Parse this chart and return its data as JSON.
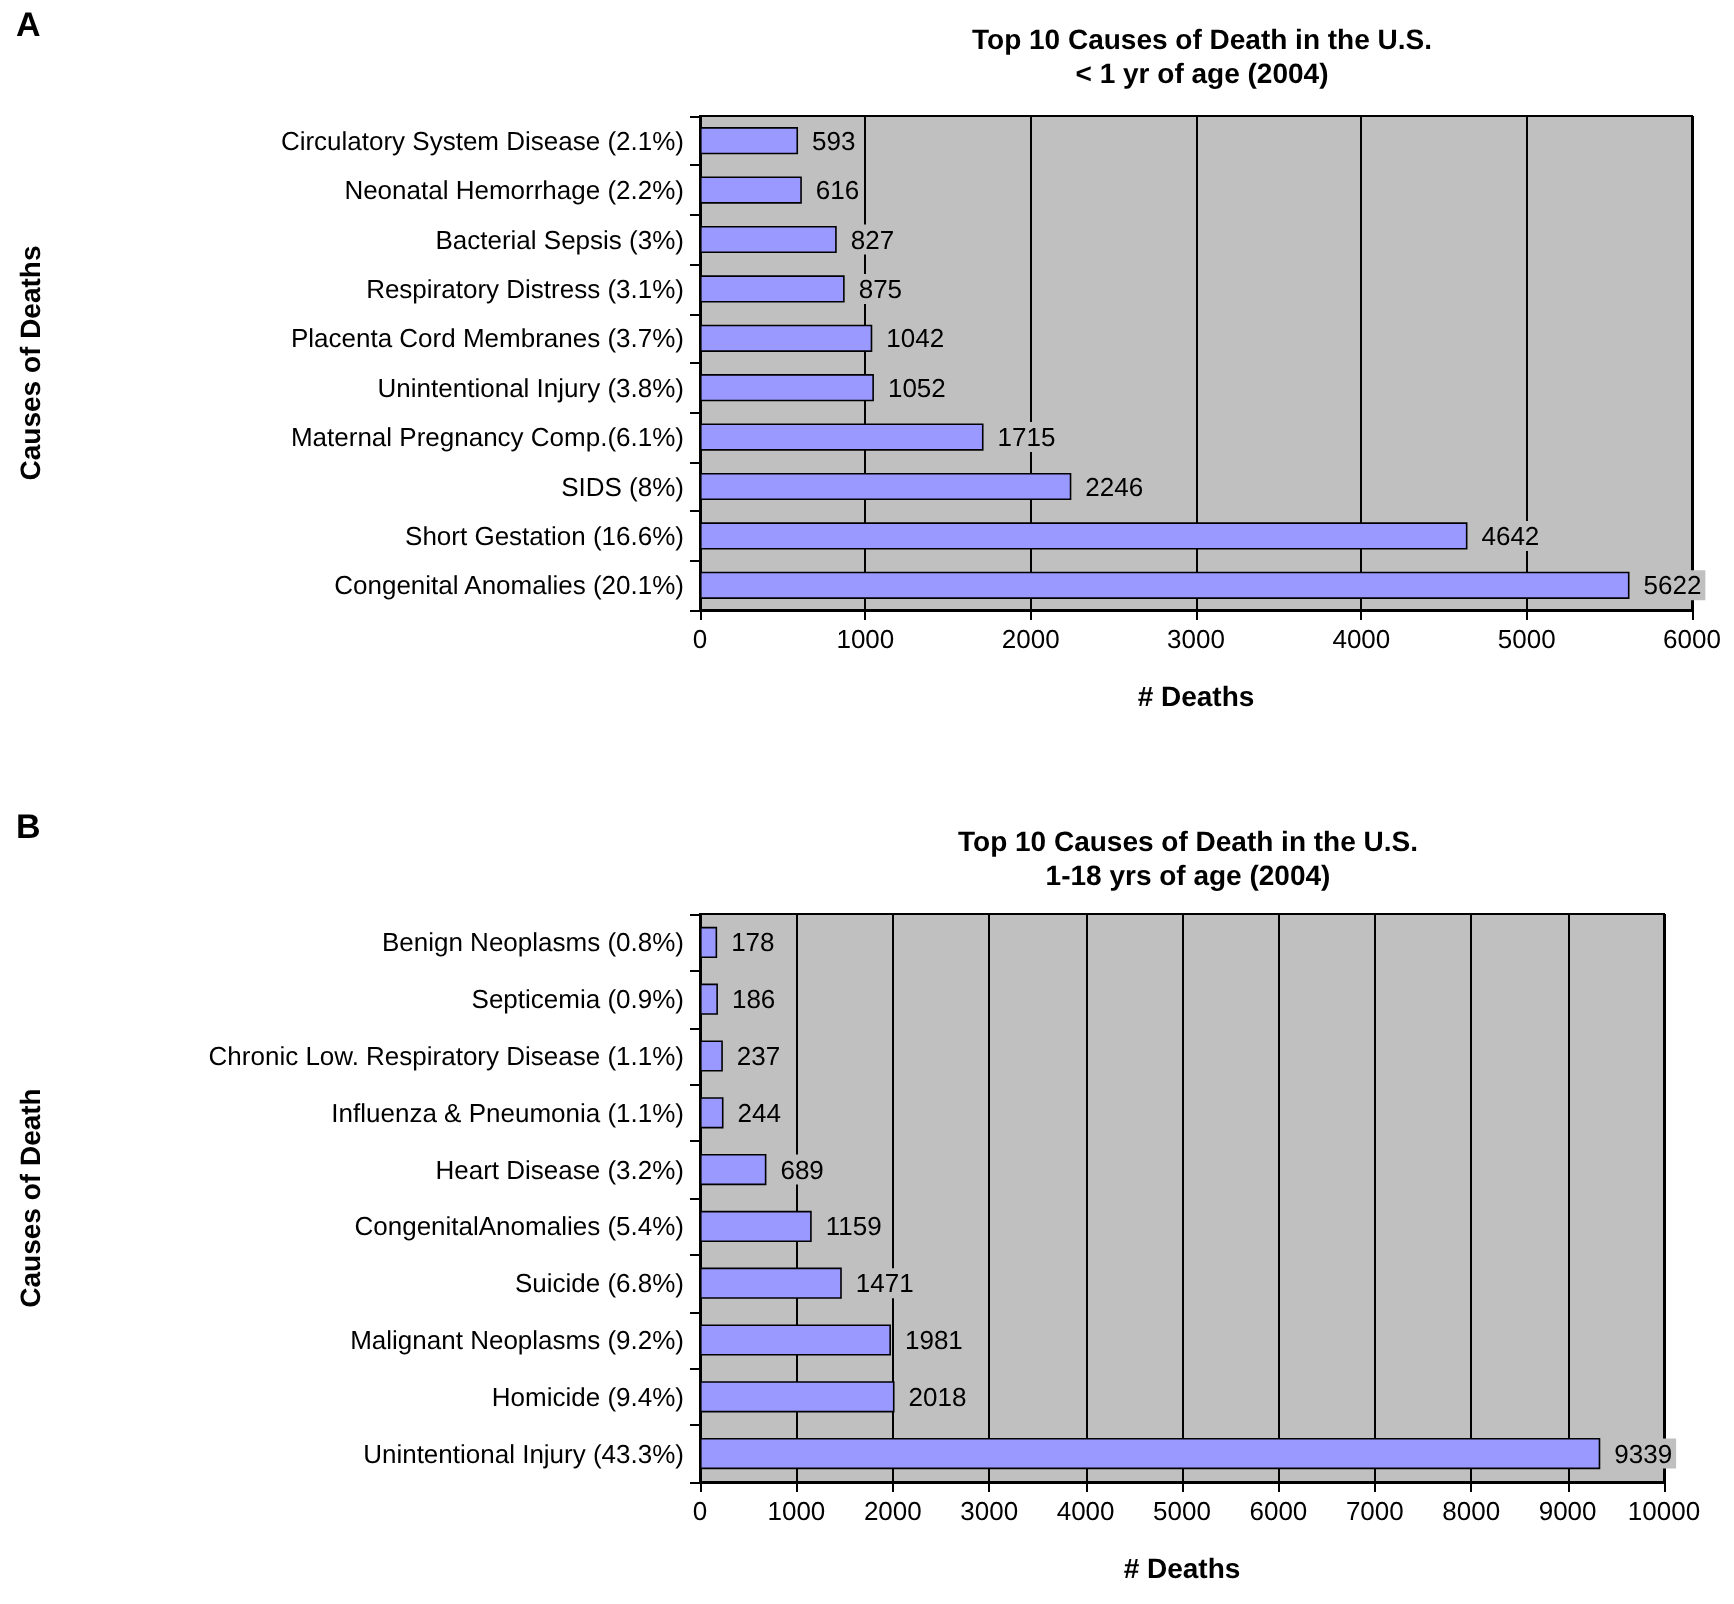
{
  "chart_data": [
    {
      "type": "bar",
      "orientation": "horizontal",
      "title": "Top 10 Causes of Death in the U.S.\n< 1 yr of age (2004)",
      "xlabel": "# Deaths",
      "ylabel": "Causes of Deaths",
      "annotations": [
        "A"
      ],
      "categories": [
        "Circulatory System Disease (2.1%)",
        "Neonatal Hemorrhage (2.2%)",
        "Bacterial Sepsis (3%)",
        "Respiratory Distress (3.1%)",
        "Placenta Cord Membranes (3.7%)",
        "Unintentional Injury (3.8%)",
        "Maternal Pregnancy Comp.(6.1%)",
        "SIDS (8%)",
        "Short Gestation (16.6%)",
        "Congenital Anomalies (20.1%)"
      ],
      "values": [
        593,
        616,
        827,
        875,
        1042,
        1052,
        1715,
        2246,
        4642,
        5622
      ],
      "color": "#9999ff",
      "xlim": [
        0,
        6000
      ],
      "xticks": [
        0,
        1000,
        2000,
        3000,
        4000,
        5000,
        6000
      ],
      "grid": "x",
      "data_labels": true
    },
    {
      "type": "bar",
      "orientation": "horizontal",
      "title": "Top 10 Causes of Death in the U.S.\n1-18 yrs of age (2004)",
      "xlabel": "# Deaths",
      "ylabel": "Causes of Death",
      "annotations": [
        "B"
      ],
      "categories": [
        "Benign Neoplasms (0.8%)",
        "Septicemia (0.9%)",
        "Chronic Low. Respiratory Disease (1.1%)",
        "Influenza & Pneumonia (1.1%)",
        "Heart Disease (3.2%)",
        "CongenitalAnomalies (5.4%)",
        "Suicide (6.8%)",
        "Malignant Neoplasms (9.2%)",
        "Homicide (9.4%)",
        "Unintentional Injury (43.3%)"
      ],
      "values": [
        178,
        186,
        237,
        244,
        689,
        1159,
        1471,
        1981,
        2018,
        9339
      ],
      "color": "#9999ff",
      "xlim": [
        0,
        10000
      ],
      "xticks": [
        0,
        1000,
        2000,
        3000,
        4000,
        5000,
        6000,
        7000,
        8000,
        9000,
        10000
      ],
      "grid": "x",
      "data_labels": true
    }
  ]
}
